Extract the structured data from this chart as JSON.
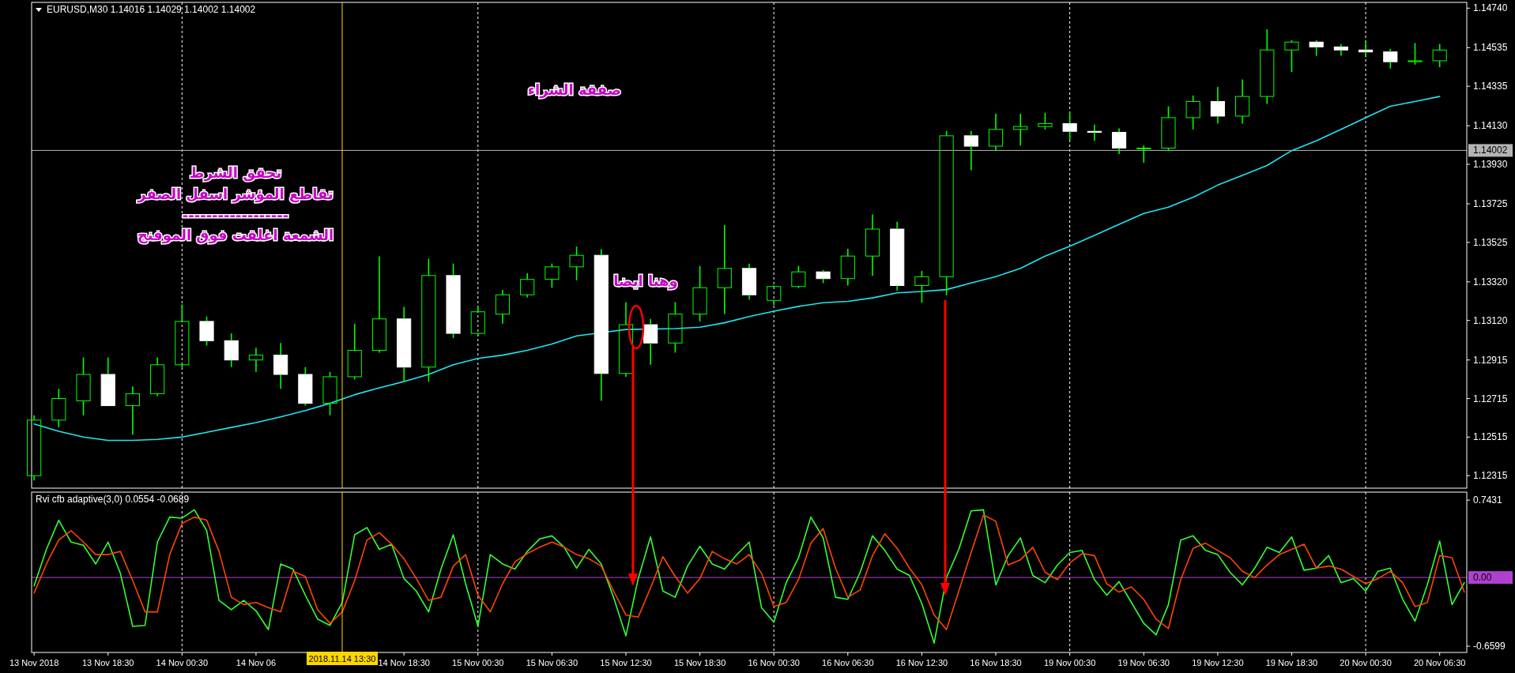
{
  "chart_data": [
    {
      "type": "candlestick",
      "title": "EURUSD,M30  1.14016 1.14029 1.14002 1.14002",
      "categories": [
        "13 Nov 2018",
        null,
        null,
        "13 Nov 18:30",
        null,
        null,
        "14 Nov 00:30",
        null,
        null,
        "14 Nov 06",
        null,
        null,
        null,
        null,
        null,
        "14 Nov 18:30",
        null,
        null,
        "15 Nov 00:30",
        null,
        null,
        "15 Nov 06:30",
        null,
        null,
        "15 Nov 12:30",
        null,
        null,
        "15 Nov 18:30",
        null,
        null,
        "16 Nov 00:30",
        null,
        null,
        "16 Nov 06:30",
        null,
        null,
        "16 Nov 12:30",
        null,
        null,
        "16 Nov 18:30",
        null,
        null,
        "19 Nov 00:30",
        null,
        null,
        "19 Nov 06:30",
        null,
        null,
        "19 Nov 12:30",
        null,
        null,
        "19 Nov 18:30",
        null,
        null,
        "20 Nov 00:30",
        null,
        null,
        "20 Nov 06:30"
      ],
      "ohlc": [
        [
          1.12315,
          1.12628,
          1.1229,
          1.12603
        ],
        [
          1.12603,
          1.12765,
          1.12565,
          1.12715
        ],
        [
          1.12703,
          1.12928,
          1.12628,
          1.1284
        ],
        [
          1.1284,
          1.12928,
          1.12678,
          1.12678
        ],
        [
          1.12678,
          1.12778,
          1.12528,
          1.1274
        ],
        [
          1.1274,
          1.12928,
          1.12728,
          1.1289
        ],
        [
          1.1289,
          1.13203,
          1.12878,
          1.13115
        ],
        [
          1.13115,
          1.1314,
          1.1299,
          1.13015
        ],
        [
          1.13015,
          1.13053,
          1.12878,
          1.12915
        ],
        [
          1.12915,
          1.12978,
          1.12853,
          1.1294
        ],
        [
          1.1294,
          1.13003,
          1.12765,
          1.1284
        ],
        [
          1.1284,
          1.12878,
          1.12678,
          1.1269
        ],
        [
          1.1269,
          1.12853,
          1.12628,
          1.12828
        ],
        [
          1.12828,
          1.13103,
          1.12815,
          1.12965
        ],
        [
          1.12965,
          1.13453,
          1.12953,
          1.13128
        ],
        [
          1.13128,
          1.1319,
          1.12803,
          1.12878
        ],
        [
          1.12878,
          1.1344,
          1.12803,
          1.13353
        ],
        [
          1.13353,
          1.13415,
          1.13028,
          1.13053
        ],
        [
          1.13053,
          1.1319,
          1.1304,
          1.13165
        ],
        [
          1.13153,
          1.13278,
          1.13103,
          1.13253
        ],
        [
          1.13253,
          1.13365,
          1.1324,
          1.13333
        ],
        [
          1.13333,
          1.13415,
          1.1329,
          1.13398
        ],
        [
          1.13398,
          1.13503,
          1.13328,
          1.13458
        ],
        [
          1.13458,
          1.1349,
          1.12703,
          1.12845
        ],
        [
          1.12845,
          1.13215,
          1.12828,
          1.13098
        ],
        [
          1.13098,
          1.13128,
          1.1289,
          1.13003
        ],
        [
          1.13003,
          1.13215,
          1.12953,
          1.13153
        ],
        [
          1.13153,
          1.13403,
          1.13115,
          1.1329
        ],
        [
          1.1329,
          1.13615,
          1.13153,
          1.1339
        ],
        [
          1.1339,
          1.13415,
          1.13228,
          1.13253
        ],
        [
          1.13224,
          1.13301,
          1.13199,
          1.13296
        ],
        [
          1.13296,
          1.13403,
          1.13288,
          1.13372
        ],
        [
          1.13372,
          1.13382,
          1.13314,
          1.13337
        ],
        [
          1.13337,
          1.13492,
          1.13301,
          1.13454
        ],
        [
          1.13454,
          1.1367,
          1.13352,
          1.13594
        ],
        [
          1.13594,
          1.13632,
          1.13275,
          1.13301
        ],
        [
          1.13301,
          1.13377,
          1.13212,
          1.13347
        ],
        [
          1.13347,
          1.14103,
          1.1325,
          1.14078
        ],
        [
          1.14078,
          1.14103,
          1.13899,
          1.14024
        ],
        [
          1.14024,
          1.14192,
          1.14001,
          1.14111
        ],
        [
          1.14111,
          1.14192,
          1.14027,
          1.14126
        ],
        [
          1.14126,
          1.14197,
          1.14111,
          1.14141
        ],
        [
          1.14141,
          1.14205,
          1.14052,
          1.14101
        ],
        [
          1.14101,
          1.14136,
          1.14052,
          1.14096
        ],
        [
          1.14096,
          1.14116,
          1.13983,
          1.14014
        ],
        [
          1.14014,
          1.14027,
          1.13938,
          1.14014
        ],
        [
          1.14014,
          1.14231,
          1.14001,
          1.14172
        ],
        [
          1.14172,
          1.14287,
          1.14111,
          1.14256
        ],
        [
          1.14256,
          1.14332,
          1.14141,
          1.1418
        ],
        [
          1.1418,
          1.14371,
          1.14141,
          1.14282
        ],
        [
          1.14282,
          1.1463,
          1.14243,
          1.14523
        ],
        [
          1.14523,
          1.14574,
          1.14409,
          1.14564
        ],
        [
          1.14564,
          1.14574,
          1.14493,
          1.14539
        ],
        [
          1.14539,
          1.14554,
          1.14493,
          1.14523
        ],
        [
          1.14523,
          1.14569,
          1.14485,
          1.14513
        ],
        [
          1.14513,
          1.14529,
          1.14427,
          1.14462
        ],
        [
          1.14462,
          1.14559,
          1.14447,
          1.14467
        ],
        [
          1.14467,
          1.14554,
          1.14434,
          1.14523
        ]
      ],
      "series": [
        {
          "type": "line",
          "color": "#1ee6f0",
          "values": [
            1.12583,
            1.12545,
            1.12515,
            1.12498,
            1.12498,
            1.12503,
            1.12515,
            1.1254,
            1.12565,
            1.1259,
            1.1262,
            1.12653,
            1.1269,
            1.12735,
            1.1277,
            1.12803,
            1.1284,
            1.1289,
            1.12923,
            1.1294,
            1.12965,
            1.12998,
            1.1304,
            null,
            1.13073,
            null,
            1.13078,
            1.13085,
            1.13108,
            1.1314,
            1.13168,
            1.13193,
            1.13212,
            1.13219,
            1.13237,
            1.13263,
            1.1327,
            1.1328,
            1.13314,
            1.13347,
            1.1339,
            1.13454,
            1.13505,
            1.13561,
            1.13619,
            1.13675,
            1.13708,
            1.13759,
            1.13822,
            1.13873,
            1.13924,
            1.14001,
            1.14052,
            1.14111,
            1.14172,
            1.14231,
            1.14256,
            1.14282
          ]
        }
      ],
      "ylim": [
        1.1225,
        1.1477
      ],
      "yticks": [
        {
          "value": 1.12315,
          "label": "1.12315"
        },
        {
          "value": 1.12515,
          "label": "1.12515"
        },
        {
          "value": 1.12715,
          "label": "1.12715"
        },
        {
          "value": 1.12915,
          "label": "1.12915"
        },
        {
          "value": 1.1312,
          "label": "1.13120"
        },
        {
          "value": 1.1332,
          "label": "1.13320"
        },
        {
          "value": 1.13525,
          "label": "1.13525"
        },
        {
          "value": 1.13725,
          "label": "1.13725"
        },
        {
          "value": 1.1393,
          "label": "1.13930"
        },
        {
          "value": 1.1413,
          "label": "1.14130"
        },
        {
          "value": 1.14335,
          "label": "1.14335"
        },
        {
          "value": 1.14535,
          "label": "1.14535"
        },
        {
          "value": 1.1474,
          "label": "1.14740"
        }
      ],
      "tick_labels": "y",
      "ref_lines": [
        {
          "axis": "x",
          "value": "14 Nov 00:30",
          "color": "#ffffff",
          "line_style": "dashed"
        },
        {
          "axis": "x",
          "value": "15 Nov 00:30",
          "color": "#ffffff",
          "line_style": "dashed"
        },
        {
          "axis": "x",
          "value": "16 Nov 00:30",
          "color": "#ffffff",
          "line_style": "dashed"
        },
        {
          "axis": "x",
          "value": "19 Nov 00:30",
          "color": "#ffffff",
          "line_style": "dashed"
        },
        {
          "axis": "x",
          "value": "20 Nov 00:30",
          "color": "#ffffff",
          "line_style": "dashed"
        },
        {
          "axis": "y",
          "value": 1.14002,
          "label": "1.14002",
          "color": "#b4b4b4"
        }
      ],
      "annotations": [
        "صفقة الشراء",
        "تحقق الشرط",
        "تقاطع المؤشر اسفل الصفر",
        "------------------",
        "الشمعة اغلقت فوق الموفنج",
        "وهنا ايضا"
      ]
    },
    {
      "type": "line",
      "title": "Rvi cfb adaptive(3,0) 0.0554 -0.0689",
      "categories": [
        "13 Nov 2018",
        null,
        null,
        null,
        null,
        null,
        "13 Nov 18:30",
        null,
        null,
        null,
        null,
        null,
        "14 Nov 00:30",
        null,
        null,
        null,
        null,
        null,
        "14 Nov 06",
        null,
        null,
        null,
        null,
        null,
        null,
        null,
        null,
        null,
        null,
        null,
        "14 Nov 18:30",
        null,
        null,
        null,
        null,
        null,
        "15 Nov 00:30",
        null,
        null,
        null,
        null,
        null,
        "15 Nov 06:30",
        null,
        null,
        null,
        null,
        null,
        "15 Nov 12:30",
        null,
        null,
        null,
        null,
        null,
        "15 Nov 18:30",
        null,
        null,
        null,
        null,
        null,
        "16 Nov 00:30",
        null,
        null,
        null,
        null,
        null,
        "16 Nov 06:30",
        null,
        null,
        null,
        null,
        null,
        "16 Nov 12:30",
        null,
        null,
        null,
        null,
        null,
        "16 Nov 18:30",
        null,
        null,
        null,
        null,
        null,
        "19 Nov 00:30",
        null,
        null,
        null,
        null,
        null,
        "19 Nov 06:30",
        null,
        null,
        null,
        null,
        null,
        "19 Nov 12:30",
        null,
        null,
        null,
        null,
        null,
        "19 Nov 18:30",
        null,
        null,
        null,
        null,
        null,
        "20 Nov 00:30",
        null,
        null,
        null,
        null,
        null,
        "20 Nov 06:30",
        null,
        null
      ],
      "series": [
        {
          "color": "#33ff33",
          "values": [
            -0.08,
            0.27,
            0.55,
            0.34,
            0.31,
            0.13,
            0.34,
            0.04,
            -0.47,
            -0.46,
            0.34,
            0.58,
            0.57,
            0.65,
            0.45,
            -0.22,
            -0.31,
            -0.22,
            -0.32,
            -0.5,
            0.13,
            0.08,
            -0.17,
            -0.4,
            -0.46,
            -0.24,
            0.41,
            0.48,
            0.27,
            0.32,
            -0.01,
            -0.13,
            -0.33,
            0.08,
            0.41,
            -0.06,
            -0.47,
            0.22,
            0.13,
            0.08,
            0.25,
            0.37,
            0.4,
            0.29,
            0.09,
            0.27,
            0.13,
            -0.19,
            -0.56,
            -0.01,
            0.39,
            -0.13,
            -0.19,
            0.11,
            0.3,
            0.13,
            0.08,
            0.22,
            0.34,
            -0.29,
            -0.43,
            -0.05,
            0.19,
            0.58,
            0.38,
            -0.19,
            -0.21,
            0.05,
            0.4,
            0.26,
            0.08,
            0.02,
            -0.25,
            -0.63,
            0,
            0.27,
            0.64,
            0.65,
            -0.07,
            0.21,
            0.38,
            0.02,
            -0.05,
            0.12,
            0.24,
            0.26,
            -0.02,
            -0.17,
            -0.04,
            -0.24,
            -0.44,
            -0.55,
            -0.26,
            0.36,
            0.4,
            0.26,
            0.22,
            0.05,
            -0.07,
            0.09,
            0.29,
            0.24,
            0.39,
            0.07,
            0.09,
            0.21,
            -0.05,
            -0.01,
            -0.13,
            0.06,
            0.09,
            -0.21,
            -0.42,
            -0.07,
            0.35,
            -0.26,
            -0.05
          ]
        },
        {
          "color": "#ff4500",
          "values": [
            -0.15,
            0.13,
            0.36,
            0.45,
            0.34,
            0.22,
            0.22,
            0.25,
            -0.03,
            -0.33,
            -0.33,
            0.22,
            0.52,
            0.58,
            0.55,
            0.25,
            -0.19,
            -0.26,
            -0.24,
            -0.29,
            -0.33,
            0.06,
            0.01,
            -0.31,
            -0.44,
            -0.33,
            -0.03,
            0.36,
            0.43,
            0.32,
            0.18,
            -0.01,
            -0.22,
            -0.19,
            0.11,
            0.22,
            -0.17,
            -0.33,
            -0.06,
            0.15,
            0.23,
            0.29,
            0.34,
            0.29,
            0.22,
            0.18,
            0.11,
            -0.13,
            -0.36,
            -0.38,
            -0.1,
            0.2,
            0.01,
            -0.15,
            -0.01,
            0.25,
            0.18,
            0.13,
            0.22,
            0.04,
            -0.28,
            -0.24,
            -0.02,
            0.33,
            0.47,
            0.09,
            -0.19,
            -0.12,
            0.21,
            0.42,
            0.28,
            0.09,
            -0.07,
            -0.36,
            -0.5,
            -0.13,
            0.24,
            0.6,
            0.54,
            0.12,
            0.17,
            0.29,
            0.05,
            -0.02,
            0.14,
            0.23,
            0.21,
            -0.06,
            -0.14,
            -0.09,
            -0.21,
            -0.4,
            -0.49,
            -0.02,
            0.28,
            0.33,
            0.26,
            0.19,
            0.06,
            0,
            0.12,
            0.22,
            0.27,
            0.32,
            0.09,
            0.11,
            0.08,
            0.01,
            -0.06,
            -0.01,
            0.06,
            -0.05,
            -0.28,
            -0.24,
            0.21,
            0.19,
            -0.14
          ]
        }
      ],
      "ylim": [
        -0.72,
        0.82
      ],
      "yticks": [
        0.7431,
        -0.6599
      ],
      "ref_lines": [
        {
          "axis": "x",
          "value": "14 Nov 00:30",
          "color": "#ffffff",
          "line_style": "dashed"
        },
        {
          "axis": "x",
          "value": "15 Nov 00:30",
          "color": "#ffffff",
          "line_style": "dashed"
        },
        {
          "axis": "x",
          "value": "16 Nov 00:30",
          "color": "#ffffff",
          "line_style": "dashed"
        },
        {
          "axis": "x",
          "value": "19 Nov 00:30",
          "color": "#ffffff",
          "line_style": "dashed"
        },
        {
          "axis": "x",
          "value": "20 Nov 00:30",
          "color": "#ffffff",
          "line_style": "dashed"
        },
        {
          "axis": "y",
          "value": 0,
          "label": "0.00",
          "color": "#b040d0"
        }
      ],
      "annotations": [
        "2018.11.14 13:30"
      ]
    }
  ]
}
